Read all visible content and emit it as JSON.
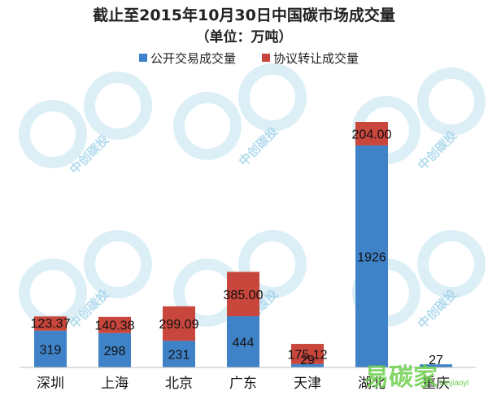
{
  "chart_data": {
    "type": "bar",
    "stacked": true,
    "title": "截止至2015年10月30日中国碳市场成交量",
    "subtitle": "（单位：万吨）",
    "categories": [
      "深圳",
      "上海",
      "北京",
      "广东",
      "天津",
      "湖北",
      "重庆"
    ],
    "series": [
      {
        "name": "公开交易成交量",
        "color": "#3f82c8",
        "values": [
          319,
          298,
          231,
          444,
          29,
          1926,
          27
        ],
        "labels": [
          "319",
          "298",
          "231",
          "444",
          "29",
          "1926",
          "27"
        ]
      },
      {
        "name": "协议转让成交量",
        "color": "#c8463c",
        "values": [
          123.37,
          140.38,
          299.09,
          385.0,
          175.12,
          204.0,
          0
        ],
        "labels": [
          "123.37",
          "140.38",
          "299.09",
          "385.00",
          "175.12",
          "204.00",
          ""
        ]
      }
    ],
    "legend_position": "top",
    "grid": false,
    "ylim": [
      0,
      2200
    ]
  },
  "watermark": {
    "text": "中创碳投",
    "brand": "易碳家",
    "brand_url": "tanjiaoyi"
  }
}
